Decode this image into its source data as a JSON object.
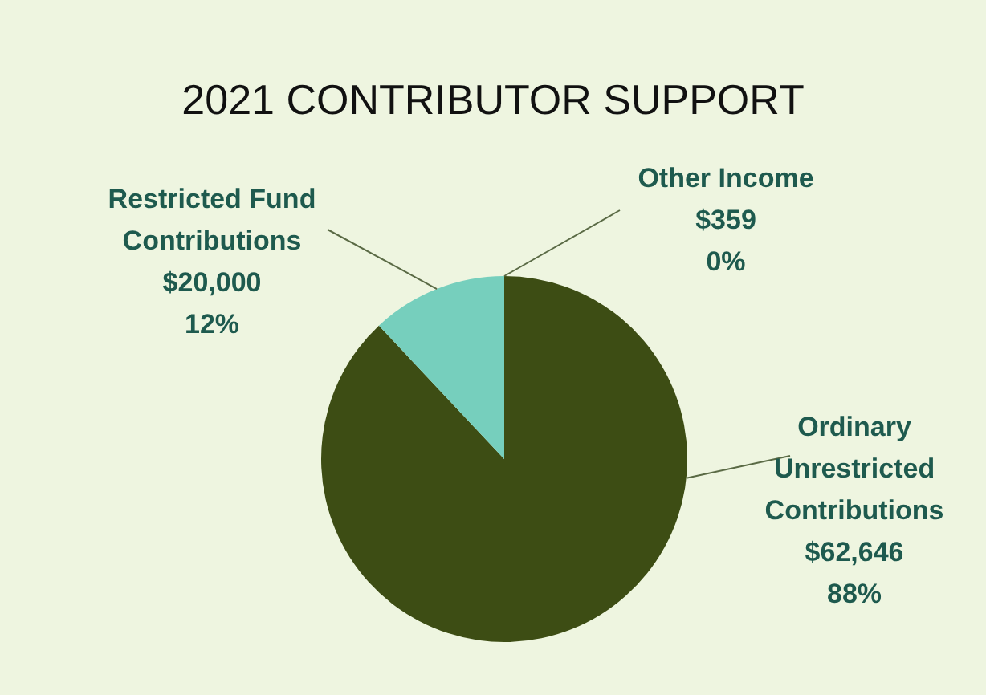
{
  "chart_data": {
    "type": "pie",
    "title": "2021 CONTRIBUTOR SUPPORT",
    "categories": [
      "Ordinary Unrestricted Contributions",
      "Restricted Fund Contributions",
      "Other Income"
    ],
    "values": [
      88,
      12,
      0
    ],
    "colors": [
      "#3d4d14",
      "#76cfbd",
      "#a9c47f"
    ],
    "value_labels": [
      "$62,646\n88%",
      "$20,000\n12%",
      "$359\n0%"
    ],
    "legend": false
  }
}
